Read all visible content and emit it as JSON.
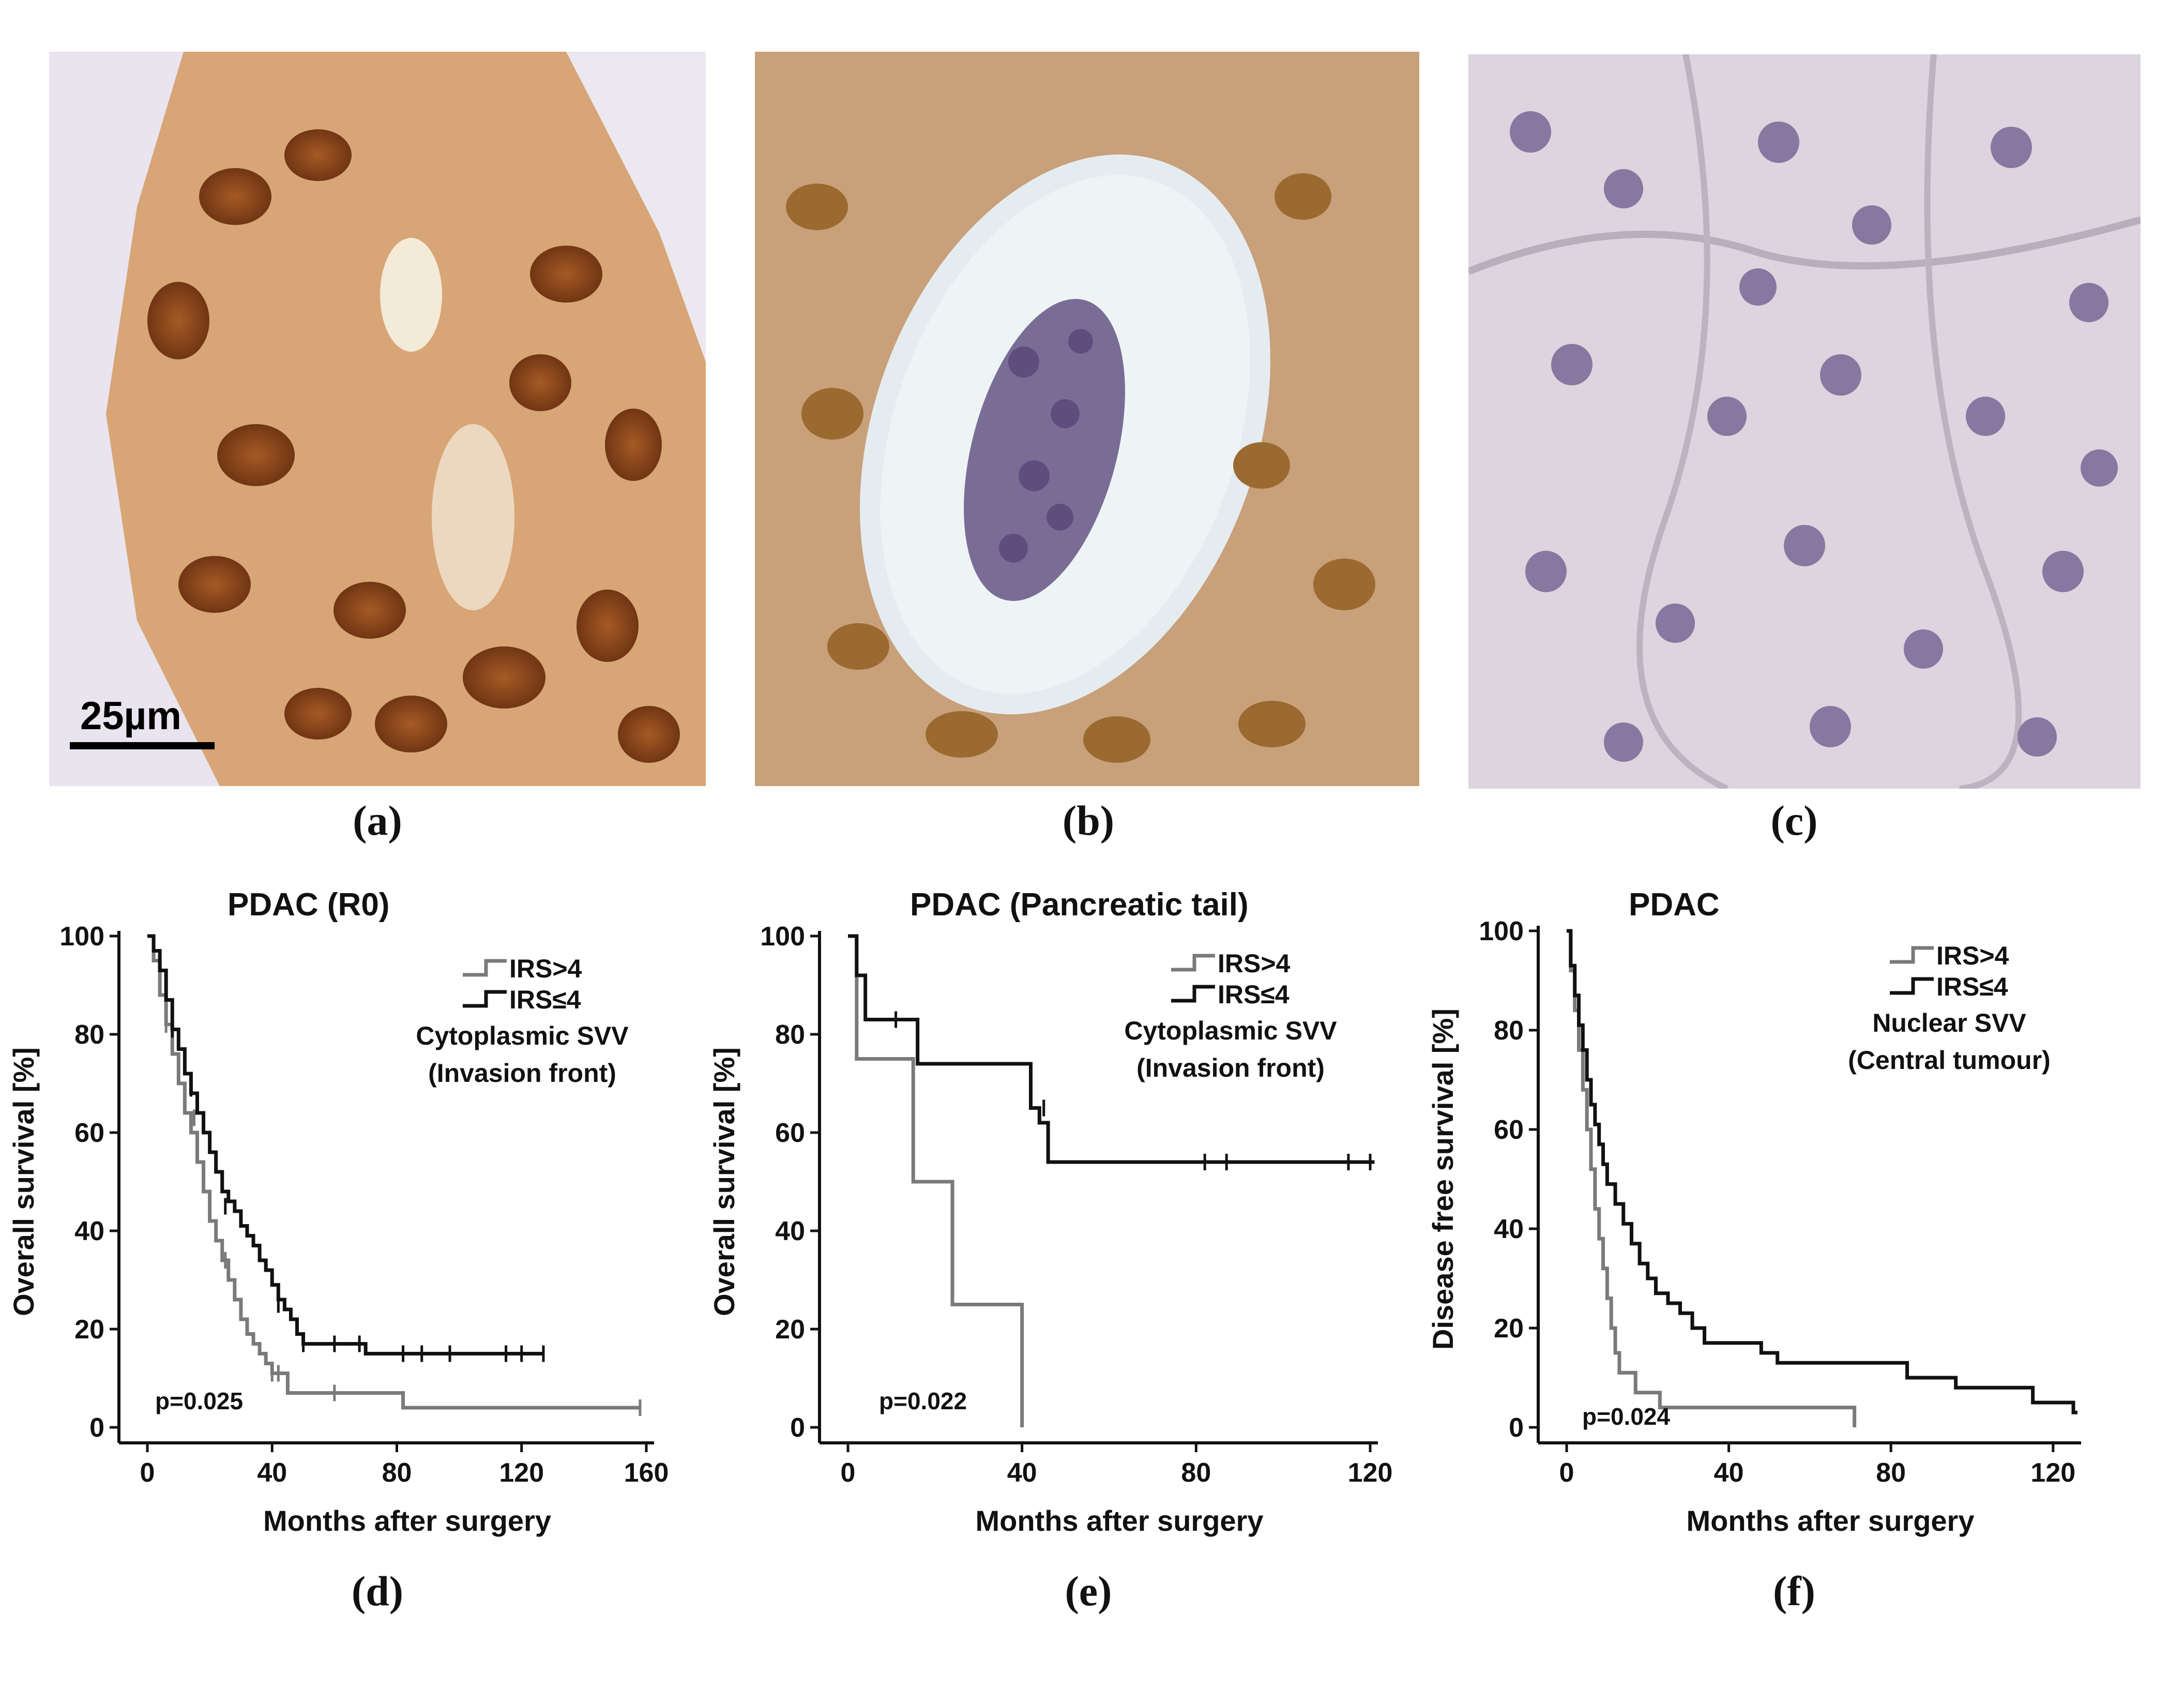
{
  "images": [
    {
      "label": "(a)",
      "scale_bar": "25µm",
      "description_stain": "strong"
    },
    {
      "label": "(b)",
      "description_stain": "moderate"
    },
    {
      "label": "(c)",
      "description_stain": "negative"
    }
  ],
  "chart_labels": [
    "(d)",
    "(e)",
    "(f)"
  ],
  "colors": {
    "high": "#7a7a7a",
    "low": "#111111"
  },
  "chart_data": [
    {
      "type": "line",
      "title": "PDAC (R0)",
      "xlabel": "Months after surgery",
      "ylabel": "Overall survival [%]",
      "xlim": [
        0,
        160
      ],
      "xticks": [
        0,
        40,
        80,
        120,
        160
      ],
      "ylim": [
        0,
        100
      ],
      "yticks": [
        0,
        20,
        40,
        60,
        80,
        100
      ],
      "pvalue": "p=0.025",
      "legend": {
        "high": "IRS>4",
        "low": "IRS≤4",
        "subtitle": [
          "Cytoplasmic SVV",
          "(Invasion front)"
        ]
      },
      "series": [
        {
          "key": "high",
          "name": "IRS>4",
          "x": [
            0,
            2,
            4,
            6,
            8,
            10,
            12,
            14,
            16,
            18,
            20,
            22,
            24,
            26,
            28,
            30,
            32,
            34,
            36,
            38,
            40,
            45,
            82,
            158
          ],
          "y": [
            100,
            95,
            88,
            82,
            76,
            70,
            64,
            60,
            54,
            48,
            42,
            38,
            34,
            30,
            26,
            22,
            19,
            17,
            15,
            13,
            11,
            7,
            4,
            4
          ],
          "censored": [
            [
              6,
              82
            ],
            [
              15,
              63
            ],
            [
              25,
              34
            ],
            [
              40,
              11
            ],
            [
              42,
              11
            ],
            [
              60,
              7
            ],
            [
              158,
              4
            ]
          ]
        },
        {
          "key": "low",
          "name": "IRS≤4",
          "x": [
            0,
            2,
            4,
            6,
            8,
            10,
            12,
            14,
            16,
            18,
            20,
            22,
            24,
            26,
            28,
            30,
            32,
            34,
            36,
            38,
            40,
            42,
            44,
            46,
            48,
            50,
            68,
            70,
            127
          ],
          "y": [
            100,
            97,
            93,
            87,
            81,
            77,
            72,
            68,
            64,
            60,
            56,
            52,
            48,
            46,
            44,
            41,
            39,
            37,
            34,
            32,
            29,
            26,
            24,
            22,
            19,
            17,
            17,
            15,
            15
          ],
          "censored": [
            [
              8,
              81
            ],
            [
              14,
              69
            ],
            [
              25,
              45
            ],
            [
              42,
              25
            ],
            [
              50,
              17
            ],
            [
              60,
              17
            ],
            [
              68,
              17
            ],
            [
              82,
              15
            ],
            [
              88,
              15
            ],
            [
              97,
              15
            ],
            [
              115,
              15
            ],
            [
              120,
              15
            ],
            [
              127,
              15
            ]
          ]
        }
      ]
    },
    {
      "type": "line",
      "title": "PDAC (Pancreatic tail)",
      "xlabel": "Months after surgery",
      "ylabel": "Overall survival [%]",
      "xlim": [
        0,
        120
      ],
      "xticks": [
        0,
        40,
        80,
        120
      ],
      "ylim": [
        0,
        100
      ],
      "yticks": [
        0,
        20,
        40,
        60,
        80,
        100
      ],
      "pvalue": "p=0.022",
      "legend": {
        "high": "IRS>4",
        "low": "IRS≤4",
        "subtitle": [
          "Cytoplasmic SVV",
          "(Invasion front)"
        ]
      },
      "series": [
        {
          "key": "high",
          "name": "IRS>4",
          "x": [
            0,
            2,
            15,
            24,
            40
          ],
          "y": [
            100,
            75,
            50,
            25,
            0
          ],
          "censored": []
        },
        {
          "key": "low",
          "name": "IRS≤4",
          "x": [
            0,
            2,
            4,
            16,
            42,
            44,
            46,
            121
          ],
          "y": [
            100,
            92,
            83,
            74,
            65,
            62,
            54,
            54
          ],
          "censored": [
            [
              11,
              83
            ],
            [
              45,
              65
            ],
            [
              82,
              54
            ],
            [
              87,
              54
            ],
            [
              115,
              54
            ],
            [
              120,
              54
            ]
          ]
        }
      ]
    },
    {
      "type": "line",
      "title": "PDAC",
      "xlabel": "Months after surgery",
      "ylabel": "Disease free survival [%]",
      "xlim": [
        0,
        125
      ],
      "xticks": [
        0,
        40,
        80,
        120
      ],
      "ylim": [
        0,
        100
      ],
      "yticks": [
        0,
        20,
        40,
        60,
        80,
        100
      ],
      "pvalue": "p=0.024",
      "legend": {
        "high": "IRS>4",
        "low": "IRS≤4",
        "subtitle": [
          "Nuclear SVV",
          "(Central tumour)"
        ]
      },
      "series": [
        {
          "key": "high",
          "name": "IRS>4",
          "x": [
            0,
            1,
            2,
            3,
            4,
            5,
            6,
            7,
            8,
            9,
            10,
            11,
            12,
            13,
            15,
            17,
            20,
            23,
            27,
            71
          ],
          "y": [
            100,
            92,
            84,
            76,
            68,
            60,
            52,
            44,
            38,
            32,
            26,
            20,
            15,
            11,
            11,
            7,
            7,
            4,
            4,
            0
          ],
          "censored": []
        },
        {
          "key": "low",
          "name": "IRS≤4",
          "x": [
            0,
            1,
            2,
            3,
            4,
            5,
            6,
            7,
            8,
            9,
            10,
            12,
            14,
            16,
            18,
            20,
            22,
            25,
            28,
            31,
            34,
            40,
            48,
            52,
            70,
            84,
            96,
            115,
            125,
            126
          ],
          "y": [
            100,
            93,
            87,
            81,
            76,
            70,
            65,
            61,
            57,
            53,
            49,
            45,
            41,
            37,
            33,
            30,
            27,
            25,
            23,
            20,
            17,
            17,
            15,
            13,
            13,
            10,
            8,
            5,
            3,
            3
          ],
          "censored": []
        }
      ]
    }
  ]
}
